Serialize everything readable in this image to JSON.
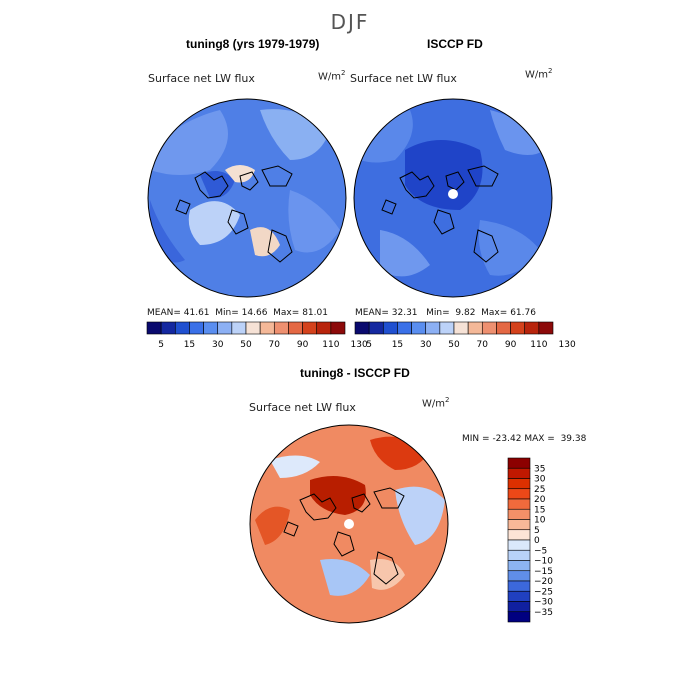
{
  "figure": {
    "title": "DJF",
    "var_name": "Surface net LW flux",
    "units_base": "W/m",
    "units_exp": "2"
  },
  "colors": {
    "land_line": "#000000",
    "bg": "#ffffff"
  },
  "chart_data": [
    {
      "type": "heatmap",
      "title": "tuning8 (yrs 1979-1979)",
      "subtitle": "Surface net LW flux",
      "units": "W/m2",
      "projection": "north-polar-stereographic",
      "stats": {
        "mean_label": "MEAN=",
        "mean": "41.61",
        "min_label": "Min=",
        "min": "14.66",
        "max_label": "Max=",
        "max": "81.01"
      },
      "colorbar": {
        "levels": [
          "5",
          "15",
          "30",
          "50",
          "70",
          "90",
          "110",
          "130"
        ],
        "colors": [
          "#0a0a6e",
          "#1428a0",
          "#2050d0",
          "#3a70e8",
          "#5a8ef0",
          "#8cb0f4",
          "#bcd2f8",
          "#f6e2d6",
          "#f4b898",
          "#ee9070",
          "#e46844",
          "#d4421c",
          "#b8240c",
          "#8c0a0a"
        ]
      }
    },
    {
      "type": "heatmap",
      "title": "ISCCP FD",
      "subtitle": "Surface net LW flux",
      "units": "W/m2",
      "projection": "north-polar-stereographic",
      "stats": {
        "mean_label": "MEAN=",
        "mean": "32.31",
        "min_label": "Min=",
        "min": "9.82",
        "max_label": "Max=",
        "max": "61.76"
      },
      "colorbar": {
        "levels": [
          "5",
          "15",
          "30",
          "50",
          "70",
          "90",
          "110",
          "130"
        ],
        "colors": [
          "#0a0a6e",
          "#1428a0",
          "#2050d0",
          "#3a70e8",
          "#5a8ef0",
          "#8cb0f4",
          "#bcd2f8",
          "#f6e2d6",
          "#f4b898",
          "#ee9070",
          "#e46844",
          "#d4421c",
          "#b8240c",
          "#8c0a0a"
        ]
      }
    },
    {
      "type": "heatmap",
      "title": "tuning8 - ISCCP FD",
      "subtitle": "Surface net LW flux",
      "units": "W/m2",
      "projection": "north-polar-stereographic",
      "stats": {
        "min_label": "MIN =",
        "min": "-23.42",
        "max_label": "MAX =",
        "max": "39.38"
      },
      "colorbar": {
        "orientation": "vertical",
        "levels": [
          "35",
          "30",
          "25",
          "20",
          "15",
          "10",
          "5",
          "0",
          "−5",
          "−10",
          "−15",
          "−20",
          "−25",
          "−30",
          "−35"
        ],
        "colors": [
          "#8c0000",
          "#c01800",
          "#dc3000",
          "#ec4818",
          "#f06a3c",
          "#f49068",
          "#f8b898",
          "#fde4d6",
          "#dae8fb",
          "#b8d2f8",
          "#8cb4f2",
          "#608ee8",
          "#3c68dc",
          "#2040c0",
          "#1020a0",
          "#000080"
        ]
      }
    }
  ]
}
